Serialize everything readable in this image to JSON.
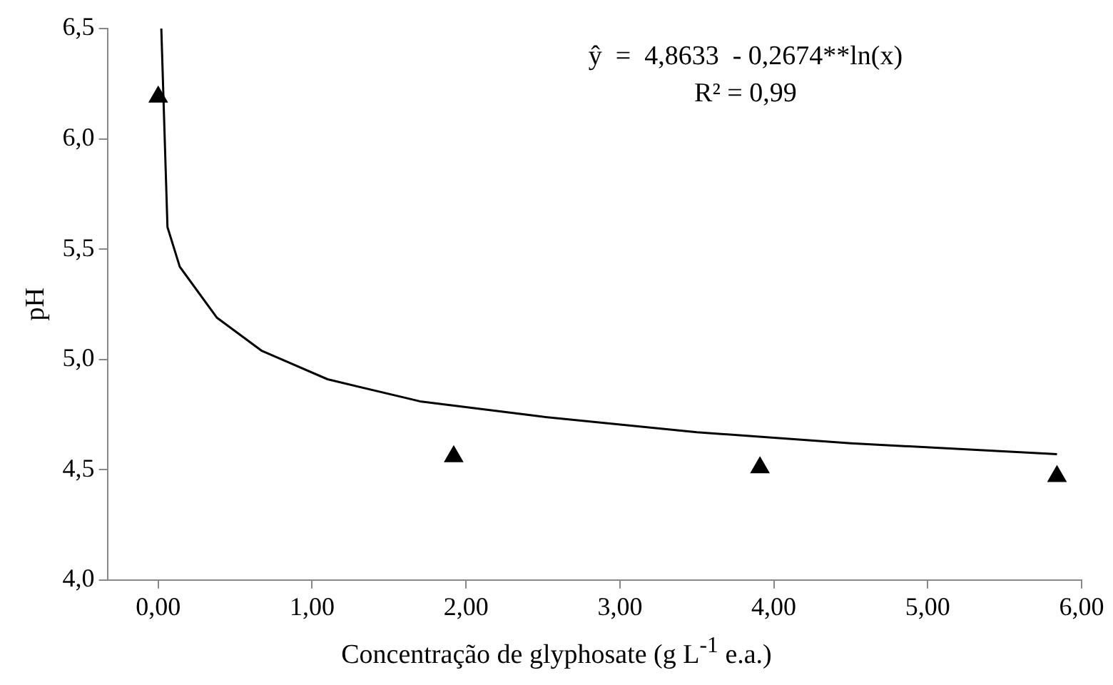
{
  "chart_data": {
    "type": "scatter",
    "xlabel": "Concentração de glyphosate (g  L$^{-1}$ e.a.)",
    "ylabel": "pH",
    "annotations": [
      "ŷ  =  4,8633  - 0,2674**ln(x)",
      "R² = 0,99"
    ],
    "series": [
      {
        "color": "#000000",
        "marker": "triangle",
        "x": [
          0,
          1.92,
          3.91,
          5.84
        ],
        "values": [
          6.19,
          4.56,
          4.51,
          4.47
        ]
      },
      {
        "type": "line",
        "color": "#000000",
        "marker": "none",
        "x": [
          0.02,
          0.06,
          0.14,
          0.38,
          0.67,
          1.1,
          1.7,
          2.5,
          3.5,
          4.5,
          5.84
        ],
        "values": [
          6.5,
          5.6,
          5.42,
          5.19,
          5.04,
          4.91,
          4.81,
          4.74,
          4.67,
          4.62,
          4.57
        ]
      }
    ],
    "xlim": [
      -0.33,
      6
    ],
    "xticks": [
      {
        "value": 0,
        "label": "0,00"
      },
      {
        "value": 1,
        "label": "1,00"
      },
      {
        "value": 2,
        "label": "2,00"
      },
      {
        "value": 3,
        "label": "3,00"
      },
      {
        "value": 4,
        "label": "4,00"
      },
      {
        "value": 5,
        "label": "5,00"
      },
      {
        "value": 6,
        "label": "6,00"
      }
    ],
    "ylim": [
      4,
      6.5
    ],
    "yticks": [
      {
        "value": 4,
        "label": "4,0"
      },
      {
        "value": 4.5,
        "label": "4,5"
      },
      {
        "value": 5,
        "label": "5,0"
      },
      {
        "value": 5.5,
        "label": "5,5"
      },
      {
        "value": 6,
        "label": "6,0"
      },
      {
        "value": 6.5,
        "label": "6,5"
      }
    ],
    "grid": false,
    "legend": false
  }
}
